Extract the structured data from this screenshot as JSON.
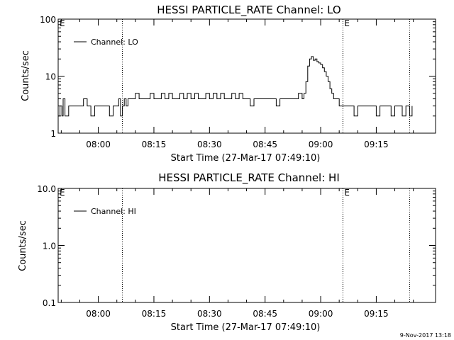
{
  "footer": {
    "timestamp": "9-Nov-2017 13:18"
  },
  "chart_data": [
    {
      "type": "line",
      "title": "HESSI PARTICLE_RATE Channel: LO",
      "xlabel": "Start Time (27-Mar-17 07:49:10)",
      "ylabel": "Counts/sec",
      "yscale": "log",
      "xlim": [
        "07:49:10",
        "09:31:00"
      ],
      "ylim": [
        1,
        100
      ],
      "x_ticks": [
        "08:00",
        "08:15",
        "08:30",
        "08:45",
        "09:00",
        "09:15"
      ],
      "y_ticks": [
        "1",
        "10",
        "100"
      ],
      "legend": {
        "label": "Channel: LO",
        "position": "top-left"
      },
      "event_lines": [
        {
          "time": "08:06:30",
          "label": ""
        },
        {
          "time": "09:06:00",
          "label": "E"
        },
        {
          "time": "09:24:00",
          "label": ""
        }
      ],
      "axis_markers": [
        {
          "time": "07:49:10",
          "label": "E"
        }
      ],
      "series": [
        {
          "x": [
            "07:49:10",
            "07:49:40",
            "07:50:10",
            "07:50:30",
            "07:51:00",
            "07:52:00",
            "07:53:00",
            "07:54:00",
            "07:55:00",
            "07:55:30",
            "07:56:00",
            "07:57:00",
            "07:58:00",
            "07:59:00",
            "08:00:00",
            "08:01:00",
            "08:02:00",
            "08:03:00",
            "08:04:00",
            "08:05:00",
            "08:05:30",
            "08:06:00",
            "08:06:30",
            "08:07:00",
            "08:07:30",
            "08:08:00",
            "08:09:00",
            "08:10:00",
            "08:11:00",
            "08:12:00",
            "08:13:00",
            "08:14:00",
            "08:15:00",
            "08:16:00",
            "08:17:00",
            "08:18:00",
            "08:19:00",
            "08:20:00",
            "08:21:00",
            "08:22:00",
            "08:23:00",
            "08:24:00",
            "08:25:00",
            "08:26:00",
            "08:27:00",
            "08:28:00",
            "08:29:00",
            "08:30:00",
            "08:31:00",
            "08:32:00",
            "08:33:00",
            "08:34:00",
            "08:35:00",
            "08:36:00",
            "08:37:00",
            "08:38:00",
            "08:39:00",
            "08:40:00",
            "08:41:00",
            "08:42:00",
            "08:43:00",
            "08:44:00",
            "08:45:00",
            "08:46:00",
            "08:47:00",
            "08:48:00",
            "08:49:00",
            "08:50:00",
            "08:51:00",
            "08:52:00",
            "08:53:00",
            "08:54:00",
            "08:55:00",
            "08:55:30",
            "08:56:00",
            "08:56:30",
            "08:57:00",
            "08:57:30",
            "08:58:00",
            "08:58:30",
            "08:59:00",
            "08:59:30",
            "09:00:00",
            "09:00:30",
            "09:01:00",
            "09:01:30",
            "09:02:00",
            "09:02:30",
            "09:03:00",
            "09:03:30",
            "09:04:00",
            "09:04:30",
            "09:05:00",
            "09:05:30",
            "09:06:00",
            "09:06:30",
            "09:07:00",
            "09:08:00",
            "09:09:00",
            "09:10:00",
            "09:11:00",
            "09:12:00",
            "09:13:00",
            "09:14:00",
            "09:15:00",
            "09:16:00",
            "09:17:00",
            "09:18:00",
            "09:19:00",
            "09:20:00",
            "09:21:00",
            "09:22:00",
            "09:23:00",
            "09:24:00",
            "09:24:40"
          ],
          "y": [
            2,
            3,
            2,
            4,
            2,
            3,
            3,
            3,
            3,
            3,
            4,
            3,
            2,
            3,
            3,
            3,
            3,
            2,
            3,
            3,
            4,
            2,
            3,
            4,
            3,
            4,
            4,
            5,
            4,
            4,
            4,
            5,
            4,
            4,
            5,
            4,
            5,
            4,
            4,
            5,
            4,
            5,
            4,
            5,
            4,
            4,
            5,
            4,
            5,
            4,
            5,
            4,
            4,
            5,
            4,
            5,
            4,
            4,
            3,
            4,
            4,
            4,
            4,
            4,
            4,
            3,
            4,
            4,
            4,
            4,
            4,
            5,
            4,
            5,
            8,
            15,
            20,
            22,
            19,
            20,
            18,
            17,
            16,
            14,
            12,
            10,
            8,
            6,
            5,
            4,
            4,
            4,
            3,
            3,
            3,
            3,
            3,
            3,
            2,
            3,
            3,
            3,
            3,
            3,
            2,
            3,
            3,
            3,
            2,
            3,
            3,
            2,
            3,
            2,
            3
          ]
        }
      ]
    },
    {
      "type": "line",
      "title": "HESSI PARTICLE_RATE Channel: HI",
      "xlabel": "Start Time (27-Mar-17 07:49:10)",
      "ylabel": "Counts/sec",
      "yscale": "log",
      "xlim": [
        "07:49:10",
        "09:31:00"
      ],
      "ylim": [
        0.1,
        10
      ],
      "x_ticks": [
        "08:00",
        "08:15",
        "08:30",
        "08:45",
        "09:00",
        "09:15"
      ],
      "y_ticks": [
        "0.1",
        "1.0",
        "10.0"
      ],
      "legend": {
        "label": "Channel: HI",
        "position": "top-left"
      },
      "event_lines": [
        {
          "time": "08:06:30",
          "label": ""
        },
        {
          "time": "09:06:00",
          "label": "E"
        },
        {
          "time": "09:24:00",
          "label": ""
        }
      ],
      "axis_markers": [
        {
          "time": "07:49:10",
          "label": "E"
        }
      ],
      "series": []
    }
  ]
}
